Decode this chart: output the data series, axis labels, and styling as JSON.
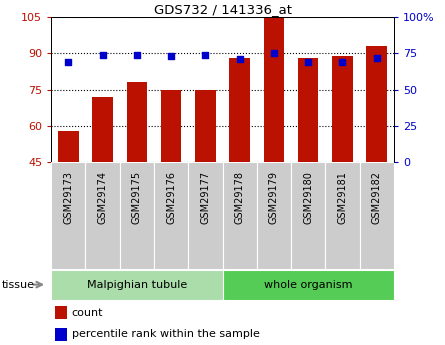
{
  "title": "GDS732 / 141336_at",
  "categories": [
    "GSM29173",
    "GSM29174",
    "GSM29175",
    "GSM29176",
    "GSM29177",
    "GSM29178",
    "GSM29179",
    "GSM29180",
    "GSM29181",
    "GSM29182"
  ],
  "counts": [
    58,
    72,
    78,
    75,
    75,
    88,
    105,
    88,
    89,
    93
  ],
  "percentiles": [
    69,
    74,
    74,
    73,
    74,
    71,
    75,
    69,
    69,
    72
  ],
  "bar_color": "#bb1100",
  "dot_color": "#0000cc",
  "left_ylim": [
    45,
    105
  ],
  "right_ylim": [
    0,
    100
  ],
  "left_yticks": [
    45,
    60,
    75,
    90,
    105
  ],
  "right_yticks": [
    0,
    25,
    50,
    75,
    100
  ],
  "right_yticklabels": [
    "0",
    "25",
    "50",
    "75",
    "100%"
  ],
  "tissue_groups": [
    {
      "label": "Malpighian tubule",
      "start": 0,
      "end": 5,
      "color": "#aaddaa"
    },
    {
      "label": "whole organism",
      "start": 5,
      "end": 10,
      "color": "#55cc55"
    }
  ],
  "legend_count_label": "count",
  "legend_pct_label": "percentile rank within the sample",
  "tissue_label": "tissue",
  "tick_label_bg": "#cccccc"
}
